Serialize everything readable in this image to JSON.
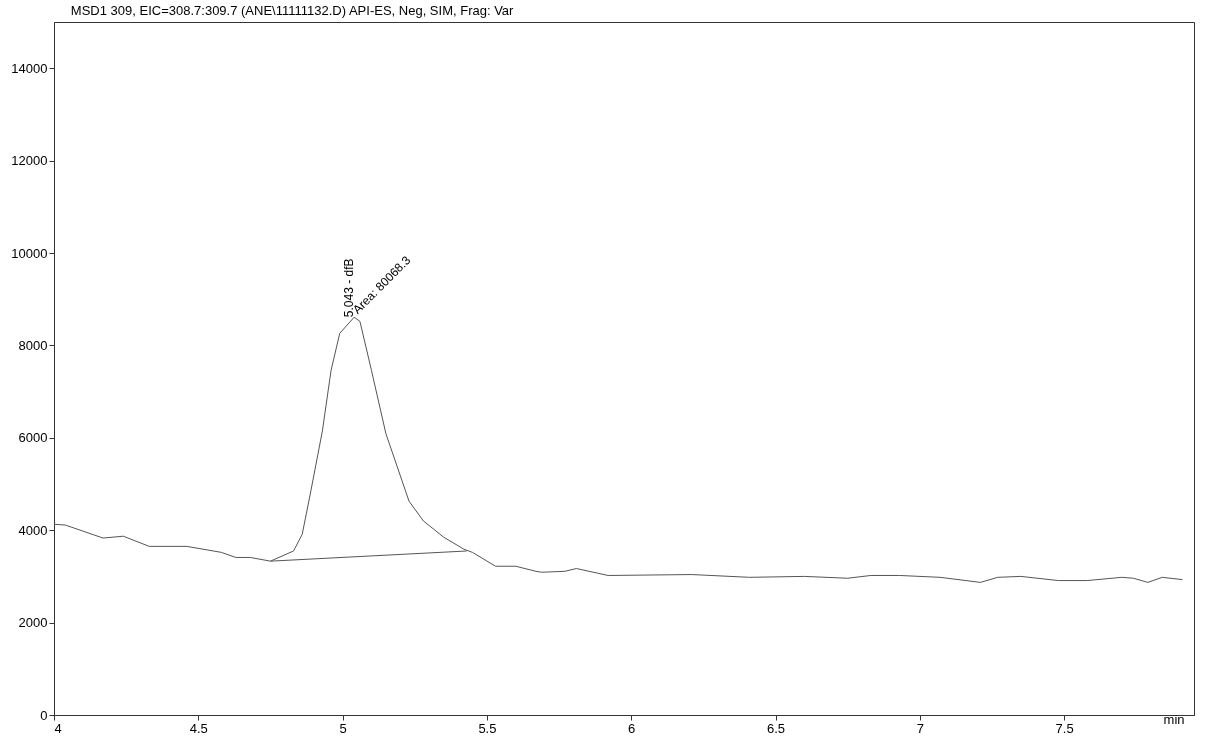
{
  "chart_data": {
    "type": "line",
    "title": "MSD1 309, EIC=308.7:309.7 (ANE\\11111132.D)    API-ES, Neg, SIM, Frag: Var",
    "xlabel": "min",
    "xlim": [
      4,
      7.95
    ],
    "xticks": [
      4,
      4.5,
      5,
      5.5,
      6,
      6.5,
      7,
      7.5
    ],
    "ylim": [
      0,
      15000
    ],
    "yticks": [
      0,
      2000,
      4000,
      6000,
      8000,
      10000,
      12000,
      14000
    ],
    "grid": false,
    "marker": "none",
    "line_style": "solid",
    "series": [
      {
        "color": "#555555",
        "x": [
          4.0,
          4.04,
          4.17,
          4.24,
          4.33,
          4.46,
          4.58,
          4.63,
          4.68,
          4.75,
          4.83,
          4.86,
          4.89,
          4.93,
          4.96,
          4.99,
          5.04,
          5.06,
          5.1,
          5.15,
          5.23,
          5.28,
          5.35,
          5.42,
          5.45,
          5.53,
          5.6,
          5.67,
          5.69,
          5.77,
          5.81,
          5.92,
          6.21,
          6.41,
          6.6,
          6.75,
          6.83,
          6.93,
          7.07,
          7.21,
          7.27,
          7.35,
          7.48,
          7.58,
          7.7,
          7.74,
          7.79,
          7.84,
          7.91
        ],
        "values": [
          4130,
          4110,
          3830,
          3870,
          3650,
          3650,
          3520,
          3410,
          3410,
          3330,
          3550,
          3910,
          4850,
          6150,
          7460,
          8260,
          8610,
          8520,
          7460,
          6090,
          4630,
          4200,
          3850,
          3590,
          3520,
          3220,
          3220,
          3110,
          3090,
          3110,
          3170,
          3020,
          3040,
          2980,
          3000,
          2960,
          3020,
          3020,
          2980,
          2870,
          2980,
          3000,
          2910,
          2910,
          2980,
          2960,
          2870,
          2980,
          2930
        ]
      },
      {
        "type": "line",
        "color": "#555555",
        "x": [
          4.75,
          5.43
        ],
        "values": [
          3330,
          3550
        ]
      }
    ],
    "annotations": [
      {
        "text": "5.043 - dfB",
        "x": 5.043,
        "y": 8610
      },
      {
        "text": "Area: 80068.3",
        "x": 5.043,
        "y": 8610
      }
    ]
  }
}
